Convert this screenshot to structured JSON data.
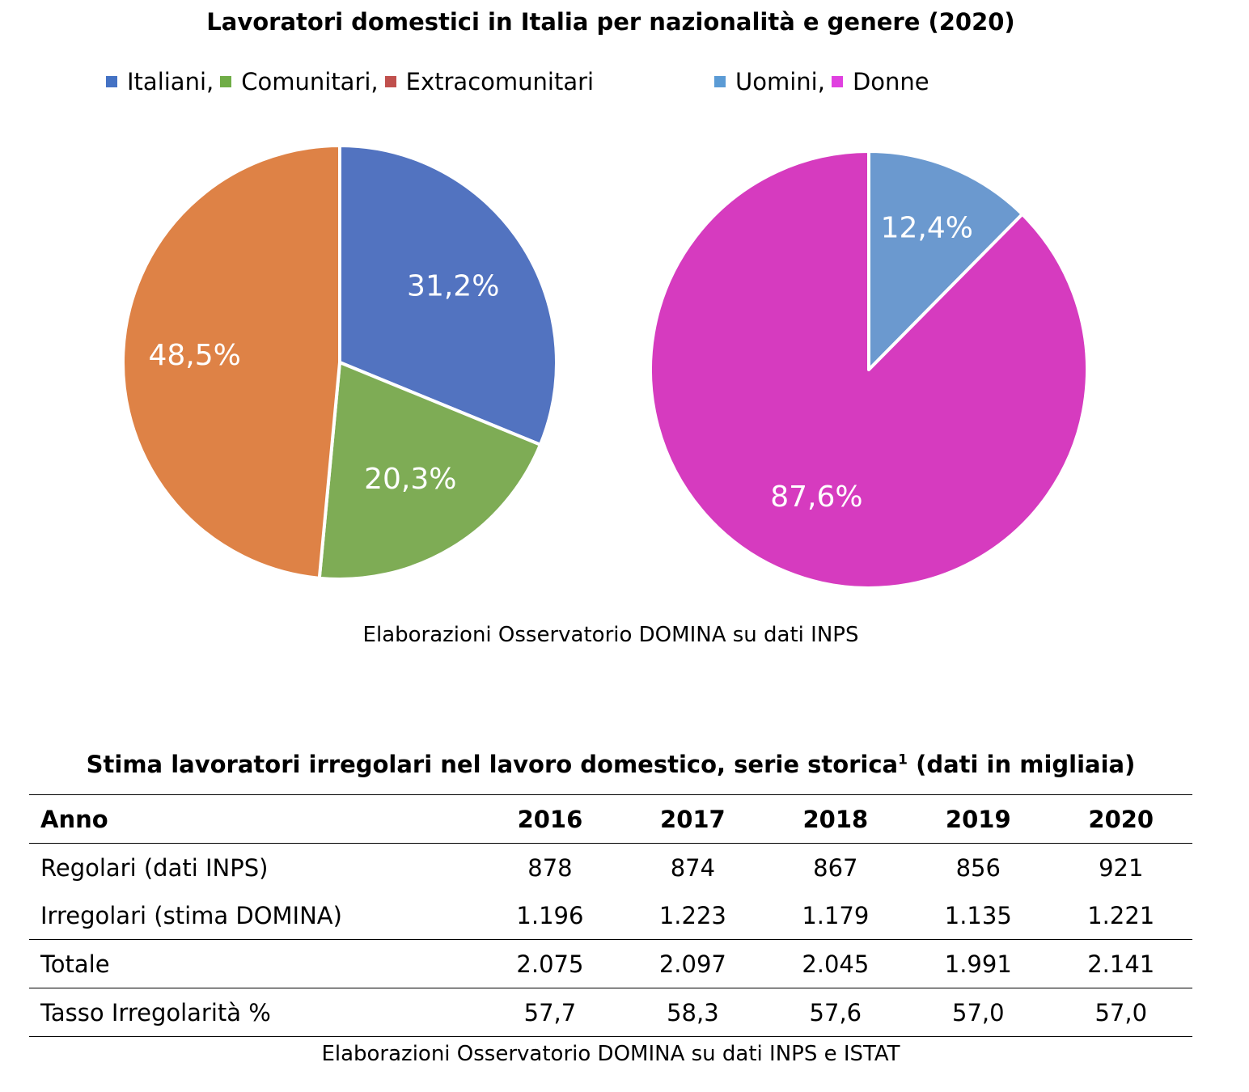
{
  "title": "Lavoratori domestici in Italia per nazionalità e genere (2020)",
  "legend_left": [
    {
      "label": "Italiani,",
      "color": "#4472C4"
    },
    {
      "label": "Comunitari,",
      "color": "#70AD47"
    },
    {
      "label": "Extracomunitari",
      "color": "#C0504D"
    }
  ],
  "legend_right": [
    {
      "label": "Uomini,",
      "color": "#5B9BD5"
    },
    {
      "label": "Donne",
      "color": "#E040E0"
    }
  ],
  "chart_data": [
    {
      "type": "pie",
      "title": "",
      "categories": [
        "Italiani",
        "Comunitari",
        "Extracomunitari"
      ],
      "values": [
        31.2,
        20.3,
        48.5
      ],
      "labels": [
        "31,2%",
        "20,3%",
        "48,5%"
      ],
      "colors": [
        "#5273C0",
        "#7EAC55",
        "#DE8246"
      ]
    },
    {
      "type": "pie",
      "title": "",
      "categories": [
        "Uomini",
        "Donne"
      ],
      "values": [
        12.4,
        87.6
      ],
      "labels": [
        "12,4%",
        "87,6%"
      ],
      "colors": [
        "#6B99CF",
        "#D63BBF"
      ]
    }
  ],
  "source1": "Elaborazioni Osservatorio DOMINA su dati INPS",
  "table": {
    "title": "Stima lavoratori irregolari nel lavoro domestico, serie storica",
    "title_sup": "1",
    "title_suffix": " (dati in migliaia)",
    "header": [
      "Anno",
      "2016",
      "2017",
      "2018",
      "2019",
      "2020"
    ],
    "rows": [
      {
        "label": "Regolari (dati INPS)",
        "values": [
          "878",
          "874",
          "867",
          "856",
          "921"
        ]
      },
      {
        "label": "Irregolari (stima DOMINA)",
        "values": [
          "1.196",
          "1.223",
          "1.179",
          "1.135",
          "1.221"
        ]
      },
      {
        "label": "Totale",
        "values": [
          "2.075",
          "2.097",
          "2.045",
          "1.991",
          "2.141"
        ]
      },
      {
        "label": "Tasso Irregolarità %",
        "values": [
          "57,7",
          "58,3",
          "57,6",
          "57,0",
          "57,0"
        ]
      }
    ]
  },
  "source2": "Elaborazioni Osservatorio DOMINA su dati INPS e ISTAT"
}
